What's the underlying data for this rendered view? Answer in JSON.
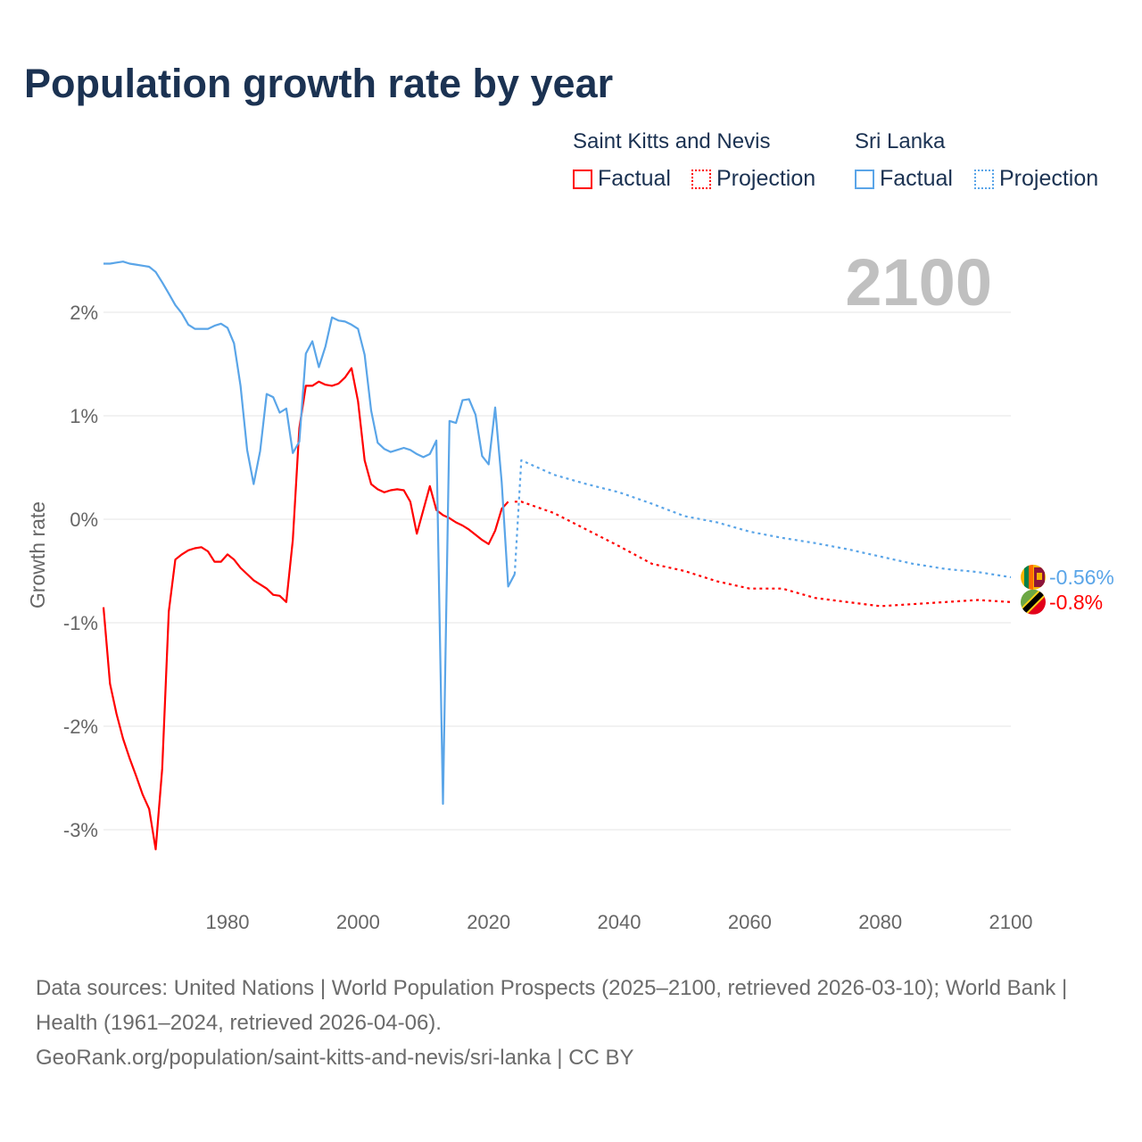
{
  "title": "Population growth rate by year",
  "legend": {
    "groups": [
      {
        "name": "Saint Kitts and Nevis",
        "color": "#ff0000",
        "factual": "Factual",
        "projection": "Projection"
      },
      {
        "name": "Sri Lanka",
        "color": "#5aa5e8",
        "factual": "Factual",
        "projection": "Projection"
      }
    ]
  },
  "year_label": "2100",
  "sources": {
    "line1": "Data sources: United Nations | World Population Prospects (2025–2100, retrieved 2026-03-10); World Bank | Health (1961–2024, retrieved 2026-04-06).",
    "line2": "GeoRank.org/population/saint-kitts-and-nevis/sri-lanka | CC BY"
  },
  "chart_data": {
    "type": "line",
    "title": "Population growth rate by year",
    "xlabel": "",
    "ylabel": "Growth rate",
    "xlim": [
      1961,
      2100
    ],
    "ylim": [
      -3.5,
      2.7
    ],
    "xticks": [
      1980,
      2000,
      2020,
      2040,
      2060,
      2080,
      2100
    ],
    "yticks": [
      2,
      1,
      0,
      -1,
      -2,
      -3
    ],
    "ytick_labels": [
      "2%",
      "1%",
      "0%",
      "-1%",
      "-2%",
      "-3%"
    ],
    "grid": true,
    "series": [
      {
        "name": "Saint Kitts and Nevis",
        "kind": "factual",
        "color": "#ff0000",
        "start": 1961,
        "values": [
          -0.85,
          -1.59,
          -1.88,
          -2.12,
          -2.31,
          -2.48,
          -2.66,
          -2.8,
          -3.19,
          -2.41,
          -0.89,
          -0.39,
          -0.34,
          -0.3,
          -0.28,
          -0.27,
          -0.31,
          -0.41,
          -0.41,
          -0.34,
          -0.39,
          -0.47,
          -0.53,
          -0.59,
          -0.63,
          -0.67,
          -0.73,
          -0.74,
          -0.8,
          -0.2,
          0.88,
          1.29,
          1.29,
          1.33,
          1.3,
          1.29,
          1.31,
          1.37,
          1.46,
          1.14,
          0.57,
          0.34,
          0.29,
          0.26,
          0.28,
          0.29,
          0.28,
          0.17,
          -0.14,
          0.09,
          0.32,
          0.09,
          0.04,
          0.01,
          -0.03,
          -0.06,
          -0.1,
          -0.15,
          -0.2,
          -0.24,
          -0.11,
          0.1,
          0.17
        ]
      },
      {
        "name": "Saint Kitts and Nevis",
        "kind": "projection",
        "color": "#ff0000",
        "start": 2024,
        "step": 5,
        "values": [
          0.17,
          0.17,
          0.06,
          -0.1,
          -0.26,
          -0.43,
          -0.5,
          -0.6,
          -0.67,
          -0.67,
          -0.76,
          -0.8,
          -0.84,
          -0.82,
          -0.8,
          -0.78,
          -0.8
        ]
      },
      {
        "name": "Sri Lanka",
        "kind": "factual",
        "color": "#5aa5e8",
        "start": 1961,
        "values": [
          2.47,
          2.47,
          2.48,
          2.49,
          2.47,
          2.46,
          2.45,
          2.44,
          2.39,
          2.29,
          2.18,
          2.07,
          1.99,
          1.88,
          1.84,
          1.84,
          1.84,
          1.87,
          1.89,
          1.85,
          1.7,
          1.29,
          0.67,
          0.34,
          0.66,
          1.21,
          1.18,
          1.03,
          1.07,
          0.64,
          0.75,
          1.6,
          1.72,
          1.47,
          1.67,
          1.95,
          1.92,
          1.91,
          1.88,
          1.84,
          1.59,
          1.05,
          0.74,
          0.68,
          0.65,
          0.67,
          0.69,
          0.67,
          0.63,
          0.6,
          0.63,
          0.76,
          -2.75,
          0.95,
          0.93,
          1.15,
          1.16,
          1.01,
          0.61,
          0.53,
          1.08,
          0.36,
          -0.65,
          -0.53
        ]
      },
      {
        "name": "Sri Lanka",
        "kind": "projection",
        "color": "#5aa5e8",
        "start": 2024,
        "step": 5,
        "values": [
          -0.53,
          0.57,
          0.43,
          0.34,
          0.26,
          0.15,
          0.03,
          -0.03,
          -0.12,
          -0.18,
          -0.23,
          -0.29,
          -0.36,
          -0.43,
          -0.48,
          -0.51,
          -0.56
        ]
      }
    ],
    "end_labels": [
      {
        "country": "Sri Lanka",
        "label": "-0.56%",
        "value": -0.56,
        "color": "#5aa5e8"
      },
      {
        "country": "Saint Kitts and Nevis",
        "label": "-0.8%",
        "value": -0.8,
        "color": "#ff0000"
      }
    ]
  }
}
